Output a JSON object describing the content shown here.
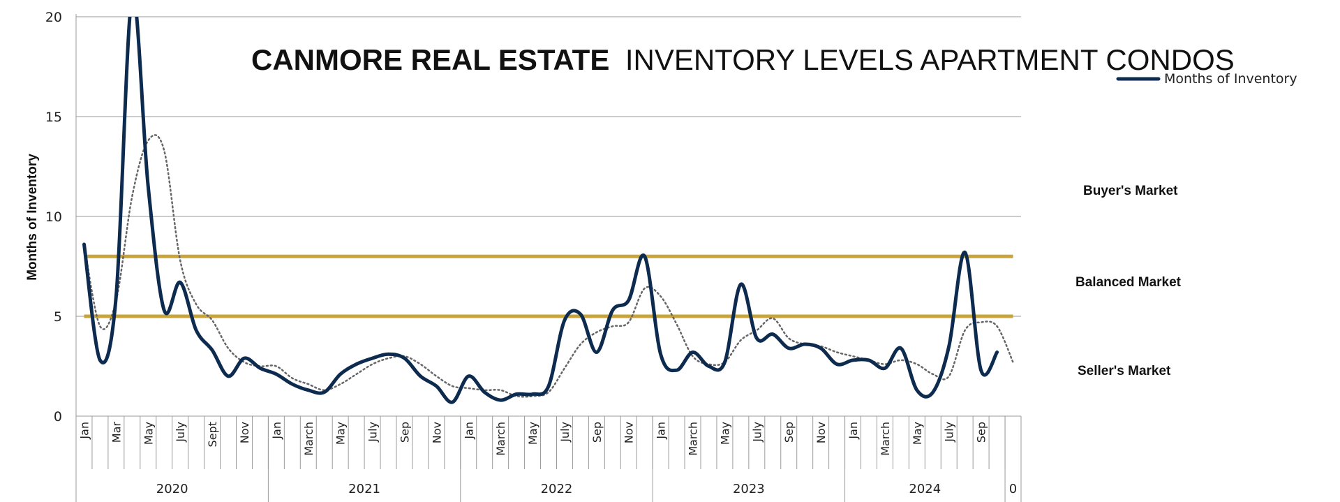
{
  "chart_data": {
    "type": "line",
    "title_bold": "CANMORE REAL ESTATE",
    "title_rest": "INVENTORY LEVELS APARTMENT CONDOS",
    "ylabel": "Months of Inventory",
    "ylim": [
      0,
      20
    ],
    "yticks": [
      "0",
      "5",
      "10",
      "15",
      "20"
    ],
    "grid": true,
    "legend": {
      "label": "Months of Inventory",
      "placement": "top-right"
    },
    "years": [
      {
        "label": "2020",
        "months": 12
      },
      {
        "label": "2021",
        "months": 12
      },
      {
        "label": "2022",
        "months": 12
      },
      {
        "label": "2023",
        "months": 12
      },
      {
        "label": "2024",
        "months": 10
      },
      {
        "label": "0",
        "months": 1
      }
    ],
    "month_labels": [
      "Jan",
      "",
      "Mar",
      "",
      "May",
      "",
      "July",
      "",
      "Sept",
      "",
      "Nov",
      "",
      "Jan",
      "",
      "March",
      "",
      "May",
      "",
      "July",
      "",
      "Sep",
      "",
      "Nov",
      "",
      "Jan",
      "",
      "March",
      "",
      "May",
      "",
      "July",
      "",
      "Sep",
      "",
      "Nov",
      "",
      "Jan",
      "",
      "March",
      "",
      "May",
      "",
      "July",
      "",
      "Sep",
      "",
      "Nov",
      "",
      "Jan",
      "",
      "March",
      "",
      "May",
      "",
      "July",
      "",
      "Sep",
      "",
      ""
    ],
    "series": [
      {
        "name": "Months of Inventory",
        "style": "solid",
        "color": "#0d2a4f",
        "values": [
          8.6,
          2.8,
          6.0,
          21.0,
          11.5,
          5.3,
          6.7,
          4.3,
          3.3,
          2.0,
          2.9,
          2.4,
          2.1,
          1.6,
          1.3,
          1.2,
          2.1,
          2.6,
          2.9,
          3.1,
          2.9,
          2.0,
          1.5,
          0.7,
          2.0,
          1.2,
          0.8,
          1.1,
          1.1,
          1.5,
          4.8,
          5.1,
          3.2,
          5.3,
          5.8,
          8.0,
          3.1,
          2.3,
          3.2,
          2.5,
          2.7,
          6.6,
          3.9,
          4.1,
          3.4,
          3.6,
          3.4,
          2.6,
          2.8,
          2.8,
          2.4,
          3.4,
          1.3,
          1.2,
          3.5,
          8.2,
          2.3,
          3.2
        ]
      },
      {
        "style": "dotted",
        "color": "#666666",
        "values": [
          8.6,
          4.5,
          5.8,
          11.0,
          13.8,
          13.3,
          7.8,
          5.6,
          4.8,
          3.4,
          2.7,
          2.5,
          2.5,
          1.9,
          1.6,
          1.3,
          1.6,
          2.1,
          2.6,
          2.9,
          3.0,
          2.6,
          2.0,
          1.5,
          1.4,
          1.3,
          1.3,
          1.0,
          1.0,
          1.2,
          2.4,
          3.6,
          4.2,
          4.5,
          4.7,
          6.4,
          6.0,
          4.6,
          3.0,
          2.6,
          2.7,
          3.8,
          4.3,
          4.9,
          3.9,
          3.6,
          3.5,
          3.2,
          3.0,
          2.8,
          2.6,
          2.8,
          2.6,
          2.1,
          2.0,
          4.3,
          4.7,
          4.5,
          2.7
        ]
      }
    ],
    "reference_lines": [
      {
        "value": 8,
        "color": "#c9a43a"
      },
      {
        "value": 5,
        "color": "#c9a43a"
      }
    ],
    "zones": [
      "Buyer's Market",
      "Balanced Market",
      "Seller's Market"
    ]
  }
}
